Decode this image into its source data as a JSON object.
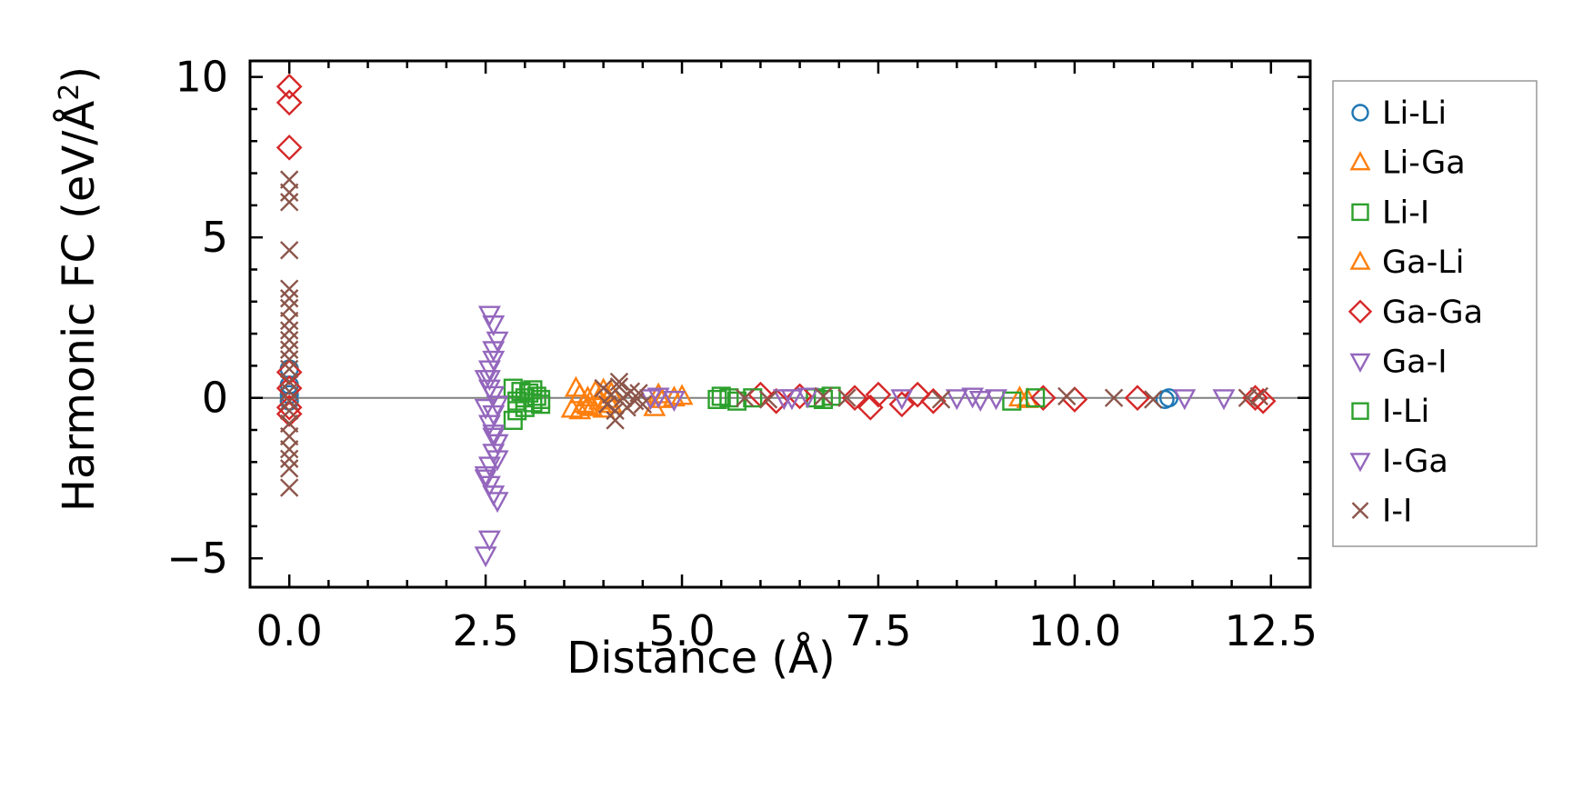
{
  "chart_data": {
    "type": "scatter",
    "xlabel": "Distance (Å)",
    "ylabel_main": "Harmonic FC (eV/Å",
    "ylabel_sup": "2",
    "ylabel_end": ")",
    "xlim": [
      -0.5,
      13.0
    ],
    "ylim": [
      -5.9,
      10.5
    ],
    "x_ticks": [
      0.0,
      2.5,
      5.0,
      7.5,
      10.0,
      12.5
    ],
    "x_tick_labels": [
      "0.0",
      "2.5",
      "5.0",
      "7.5",
      "10.0",
      "12.5"
    ],
    "y_ticks": [
      -5,
      0,
      5,
      10
    ],
    "y_tick_labels": [
      "−5",
      "0",
      "5",
      "10"
    ],
    "x_minor_step": 0.5,
    "y_minor_step": 1,
    "zero_line": true,
    "legend_position": "right",
    "series": [
      {
        "name": "Li-Li",
        "marker": "circle",
        "color": "#1f77b4",
        "points": [
          [
            0,
            0.9
          ],
          [
            0,
            0.4
          ],
          [
            0,
            -0.1
          ],
          [
            0,
            0.1
          ],
          [
            11.15,
            -0.05
          ],
          [
            11.2,
            0.0
          ]
        ]
      },
      {
        "name": "Li-Ga",
        "marker": "triangle-up",
        "color": "#ff7f0e",
        "points": [
          [
            3.65,
            0.3
          ],
          [
            3.7,
            0.1
          ],
          [
            3.75,
            -0.2
          ],
          [
            3.8,
            0.0
          ],
          [
            3.85,
            -0.3
          ],
          [
            3.9,
            0.2
          ],
          [
            3.95,
            -0.1
          ],
          [
            4.0,
            0.25
          ],
          [
            4.05,
            -0.05
          ],
          [
            4.1,
            0.15
          ],
          [
            4.65,
            -0.3
          ],
          [
            4.7,
            0.1
          ],
          [
            4.75,
            -0.05
          ]
        ]
      },
      {
        "name": "Li-I",
        "marker": "square",
        "color": "#2ca02c",
        "points": [
          [
            2.85,
            0.3
          ],
          [
            2.9,
            -0.1
          ],
          [
            2.95,
            0.2
          ],
          [
            3.0,
            -0.3
          ],
          [
            3.05,
            0.15
          ],
          [
            3.1,
            -0.15
          ],
          [
            3.15,
            0.05
          ],
          [
            3.2,
            -0.05
          ],
          [
            2.85,
            -0.7
          ],
          [
            5.45,
            -0.05
          ],
          [
            5.5,
            0.05
          ],
          [
            5.6,
            0.0
          ],
          [
            5.7,
            -0.1
          ],
          [
            6.7,
            0.0
          ],
          [
            6.8,
            -0.05
          ],
          [
            6.9,
            0.05
          ]
        ]
      },
      {
        "name": "Ga-Li",
        "marker": "triangle-up",
        "color": "#ff7f0e",
        "points": [
          [
            3.6,
            -0.35
          ],
          [
            3.7,
            -0.4
          ],
          [
            3.8,
            -0.25
          ],
          [
            4.0,
            -0.35
          ],
          [
            4.1,
            -0.2
          ],
          [
            4.9,
            0.0
          ],
          [
            5.0,
            0.05
          ],
          [
            9.3,
            0.0
          ],
          [
            9.4,
            -0.05
          ]
        ]
      },
      {
        "name": "Ga-Ga",
        "marker": "diamond",
        "color": "#d62728",
        "points": [
          [
            0,
            9.7
          ],
          [
            0,
            9.2
          ],
          [
            0,
            7.8
          ],
          [
            0,
            0.8
          ],
          [
            0,
            0.3
          ],
          [
            0,
            -0.3
          ],
          [
            0,
            -0.5
          ],
          [
            6.0,
            0.1
          ],
          [
            6.2,
            -0.1
          ],
          [
            6.5,
            0.05
          ],
          [
            7.2,
            0.0
          ],
          [
            7.4,
            -0.3
          ],
          [
            7.5,
            0.1
          ],
          [
            7.8,
            -0.2
          ],
          [
            8.0,
            0.1
          ],
          [
            8.2,
            -0.1
          ],
          [
            9.6,
            0.0
          ],
          [
            10.0,
            -0.05
          ],
          [
            10.8,
            0.0
          ],
          [
            12.3,
            0.0
          ],
          [
            12.4,
            -0.1
          ]
        ]
      },
      {
        "name": "Ga-I",
        "marker": "triangle-down",
        "color": "#9467bd",
        "points": [
          [
            2.55,
            2.6
          ],
          [
            2.6,
            2.3
          ],
          [
            2.65,
            1.8
          ],
          [
            2.6,
            1.5
          ],
          [
            2.6,
            1.2
          ],
          [
            2.55,
            0.9
          ],
          [
            2.5,
            0.6
          ],
          [
            2.55,
            0.3
          ],
          [
            2.6,
            0.1
          ],
          [
            2.65,
            -0.2
          ],
          [
            2.6,
            -0.5
          ],
          [
            2.55,
            -0.8
          ],
          [
            2.6,
            -1.1
          ],
          [
            2.65,
            -1.4
          ],
          [
            2.6,
            -1.7
          ],
          [
            2.55,
            -2.1
          ],
          [
            2.5,
            -2.4
          ],
          [
            2.55,
            -2.7
          ],
          [
            2.6,
            -3.0
          ],
          [
            2.65,
            -3.2
          ],
          [
            2.55,
            -4.4
          ],
          [
            2.5,
            -4.9
          ],
          [
            4.6,
            0.0
          ],
          [
            6.4,
            0.0
          ],
          [
            7.8,
            0.0
          ],
          [
            8.8,
            -0.05
          ],
          [
            11.4,
            0.0
          ],
          [
            11.9,
            0.0
          ]
        ]
      },
      {
        "name": "I-Li",
        "marker": "square",
        "color": "#2ca02c",
        "points": [
          [
            2.9,
            -0.4
          ],
          [
            3.0,
            0.0
          ],
          [
            3.1,
            0.25
          ],
          [
            3.2,
            -0.2
          ],
          [
            5.9,
            0.0
          ],
          [
            9.2,
            -0.1
          ],
          [
            9.5,
            0.0
          ]
        ]
      },
      {
        "name": "I-Ga",
        "marker": "triangle-down",
        "color": "#9467bd",
        "points": [
          [
            2.5,
            -0.3
          ],
          [
            2.55,
            0.6
          ],
          [
            2.6,
            -1.2
          ],
          [
            2.65,
            -1.9
          ],
          [
            2.5,
            -2.5
          ],
          [
            4.7,
            0.05
          ],
          [
            4.9,
            -0.05
          ],
          [
            6.3,
            0.0
          ],
          [
            6.6,
            0.05
          ],
          [
            8.5,
            0.0
          ],
          [
            8.7,
            0.05
          ],
          [
            9.0,
            0.0
          ]
        ]
      },
      {
        "name": "I-I",
        "marker": "x",
        "color": "#8c564b",
        "points": [
          [
            0,
            6.8
          ],
          [
            0,
            6.4
          ],
          [
            0,
            6.1
          ],
          [
            0,
            4.6
          ],
          [
            0,
            3.4
          ],
          [
            0,
            3.1
          ],
          [
            0,
            2.8
          ],
          [
            0,
            2.4
          ],
          [
            0,
            2.1
          ],
          [
            0,
            1.8
          ],
          [
            0,
            1.5
          ],
          [
            0,
            1.2
          ],
          [
            0,
            0.9
          ],
          [
            0,
            0.5
          ],
          [
            0,
            0.2
          ],
          [
            0,
            -0.1
          ],
          [
            0,
            -0.4
          ],
          [
            0,
            -0.8
          ],
          [
            0,
            -1.2
          ],
          [
            0,
            -1.6
          ],
          [
            0,
            -1.9
          ],
          [
            0,
            -2.2
          ],
          [
            0,
            -2.8
          ],
          [
            4.0,
            0.3
          ],
          [
            4.05,
            -0.2
          ],
          [
            4.1,
            0.1
          ],
          [
            4.15,
            -0.4
          ],
          [
            4.2,
            0.35
          ],
          [
            4.25,
            0.0
          ],
          [
            4.3,
            -0.3
          ],
          [
            4.35,
            0.2
          ],
          [
            4.4,
            -0.1
          ],
          [
            4.45,
            0.15
          ],
          [
            4.5,
            -0.2
          ],
          [
            4.15,
            -0.7
          ],
          [
            4.2,
            0.5
          ],
          [
            5.8,
            0.0
          ],
          [
            6.1,
            -0.05
          ],
          [
            6.8,
            0.05
          ],
          [
            7.1,
            0.0
          ],
          [
            8.3,
            -0.05
          ],
          [
            9.9,
            0.05
          ],
          [
            10.5,
            0.0
          ],
          [
            11.0,
            -0.05
          ],
          [
            12.2,
            0.0
          ],
          [
            12.35,
            0.05
          ]
        ]
      }
    ]
  }
}
